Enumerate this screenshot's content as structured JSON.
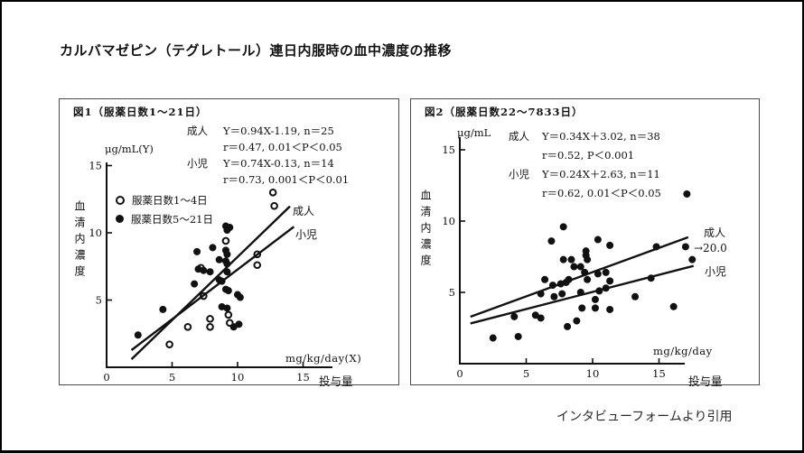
{
  "page": {
    "title": "カルバマゼピン（テグレトール）連日内服時の血中濃度の推移",
    "caption": "インタビューフォームより引用"
  },
  "colors": {
    "ink": "#111111",
    "background": "#ffffff",
    "panel_border": "#4a4a4a",
    "page_border": "#000000"
  },
  "chart_data": [
    {
      "type": "scatter",
      "figure_label": "図1（服薬日数1～21日）",
      "y_unit": "μg/mL(Y)",
      "ylabel": "血清内濃度",
      "x_unit": "mg/kg/day(X)",
      "xlabel": "投与量",
      "xlim": [
        0,
        17
      ],
      "ylim": [
        0,
        16
      ],
      "xticks": [
        0,
        5,
        10,
        15
      ],
      "yticks": [
        5,
        10,
        15
      ],
      "grid": false,
      "stats": [
        {
          "group": "成人",
          "text": "Y＝0.94X-1.19,  n＝25"
        },
        {
          "group": "",
          "text": "r＝0.47,  0.01＜P＜0.05"
        },
        {
          "group": "小児",
          "text": "Y＝0.74X-0.13,  n＝14"
        },
        {
          "group": "",
          "text": "r＝0.73,  0.001＜P＜0.01"
        }
      ],
      "legend": [
        {
          "marker": "open",
          "label": "服薬日数1～4日"
        },
        {
          "marker": "filled",
          "label": "服薬日数5～21日"
        }
      ],
      "series": [
        {
          "name": "服薬日数1～4日",
          "marker": "open",
          "points": [
            [
              4.8,
              1.7
            ],
            [
              6.2,
              3.0
            ],
            [
              7.9,
              3.0
            ],
            [
              7.9,
              3.6
            ],
            [
              9.3,
              3.9
            ],
            [
              9.4,
              3.3
            ],
            [
              7.4,
              5.3
            ],
            [
              7.2,
              7.4
            ],
            [
              9.1,
              9.4
            ],
            [
              11.5,
              8.4
            ],
            [
              11.5,
              7.6
            ],
            [
              12.7,
              13.0
            ],
            [
              12.8,
              12.0
            ]
          ]
        },
        {
          "name": "服薬日数5～21日",
          "marker": "filled",
          "points": [
            [
              2.4,
              2.4
            ],
            [
              4.3,
              4.3
            ],
            [
              6.7,
              6.2
            ],
            [
              6.9,
              8.6
            ],
            [
              7.0,
              7.3
            ],
            [
              7.4,
              7.2
            ],
            [
              7.9,
              7.1
            ],
            [
              8.1,
              8.9
            ],
            [
              8.6,
              8.0
            ],
            [
              8.6,
              6.5
            ],
            [
              8.8,
              6.4
            ],
            [
              8.8,
              4.5
            ],
            [
              9.1,
              10.5
            ],
            [
              9.4,
              10.4
            ],
            [
              9.2,
              10.2
            ],
            [
              9.1,
              8.7
            ],
            [
              9.2,
              8.4
            ],
            [
              9.1,
              7.9
            ],
            [
              9.2,
              7.7
            ],
            [
              9.2,
              7.1
            ],
            [
              9.1,
              5.8
            ],
            [
              9.3,
              5.7
            ],
            [
              9.2,
              4.4
            ],
            [
              10.0,
              5.4
            ],
            [
              10.2,
              5.2
            ],
            [
              9.7,
              3.0
            ],
            [
              10.1,
              3.2
            ]
          ]
        }
      ],
      "regression_lines": [
        {
          "label": "成人",
          "equation": "Y＝0.94X-1.19",
          "slope": 0.94,
          "intercept": -1.19,
          "x_start": 1.9,
          "x_end": 14.0
        },
        {
          "label": "小児",
          "equation": "Y＝0.74X-0.13",
          "slope": 0.74,
          "intercept": -0.13,
          "x_start": 1.9,
          "x_end": 14.3
        }
      ]
    },
    {
      "type": "scatter",
      "figure_label": "図2（服薬日数22～7833日）",
      "y_unit": "μg/mL",
      "ylabel": "血清内濃度",
      "x_unit": "mg/kg/day",
      "xlabel": "投与量",
      "xlim": [
        0,
        18
      ],
      "ylim": [
        0,
        16
      ],
      "xticks": [
        0,
        5,
        10,
        15
      ],
      "yticks": [
        5,
        10,
        15
      ],
      "grid": false,
      "stats": [
        {
          "group": "成人",
          "text": "Y＝0.34X＋3.02,  n＝38"
        },
        {
          "group": "",
          "text": "r＝0.52,  P＜0.001"
        },
        {
          "group": "小児",
          "text": "Y＝0.24X＋2.63,  n＝11"
        },
        {
          "group": "",
          "text": "r＝0.62,  0.01＜P＜0.05"
        }
      ],
      "series": [
        {
          "marker": "filled",
          "points": [
            [
              2.5,
              1.8
            ],
            [
              4.4,
              1.9
            ],
            [
              4.1,
              3.3
            ],
            [
              5.7,
              3.4
            ],
            [
              6.1,
              3.2
            ],
            [
              6.1,
              4.9
            ],
            [
              6.4,
              5.9
            ],
            [
              6.9,
              8.6
            ],
            [
              7.0,
              5.5
            ],
            [
              7.1,
              4.7
            ],
            [
              7.6,
              5.6
            ],
            [
              7.7,
              4.9
            ],
            [
              7.8,
              9.6
            ],
            [
              7.8,
              7.3
            ],
            [
              8.0,
              5.7
            ],
            [
              8.1,
              2.6
            ],
            [
              8.2,
              5.9
            ],
            [
              8.4,
              7.3
            ],
            [
              8.6,
              6.8
            ],
            [
              8.8,
              3.0
            ],
            [
              9.1,
              6.8
            ],
            [
              9.1,
              5.0
            ],
            [
              9.2,
              3.9
            ],
            [
              9.4,
              6.4
            ],
            [
              9.5,
              7.9
            ],
            [
              9.5,
              7.6
            ],
            [
              9.6,
              7.3
            ],
            [
              9.6,
              5.9
            ],
            [
              10.2,
              4.5
            ],
            [
              10.2,
              3.9
            ],
            [
              10.4,
              8.7
            ],
            [
              10.4,
              6.3
            ],
            [
              10.5,
              5.1
            ],
            [
              11.0,
              6.4
            ],
            [
              11.0,
              5.3
            ],
            [
              11.3,
              8.3
            ],
            [
              11.3,
              5.8
            ],
            [
              11.3,
              3.8
            ],
            [
              13.2,
              4.7
            ],
            [
              14.4,
              6.0
            ],
            [
              14.8,
              8.2
            ],
            [
              16.1,
              4.0
            ],
            [
              17.0,
              8.2
            ],
            [
              17.5,
              7.3
            ],
            [
              17.1,
              11.9
            ]
          ]
        }
      ],
      "annotation": {
        "text": "→20.0",
        "at": [
          17.0,
          8.2
        ]
      },
      "regression_lines": [
        {
          "label": "成人",
          "equation": "Y＝0.34X＋3.02",
          "slope": 0.34,
          "intercept": 3.02,
          "x_start": 0.8,
          "x_end": 17.2
        },
        {
          "label": "小児",
          "equation": "Y＝0.24X＋2.63",
          "slope": 0.24,
          "intercept": 2.63,
          "x_start": 0.8,
          "x_end": 17.6
        }
      ]
    }
  ]
}
